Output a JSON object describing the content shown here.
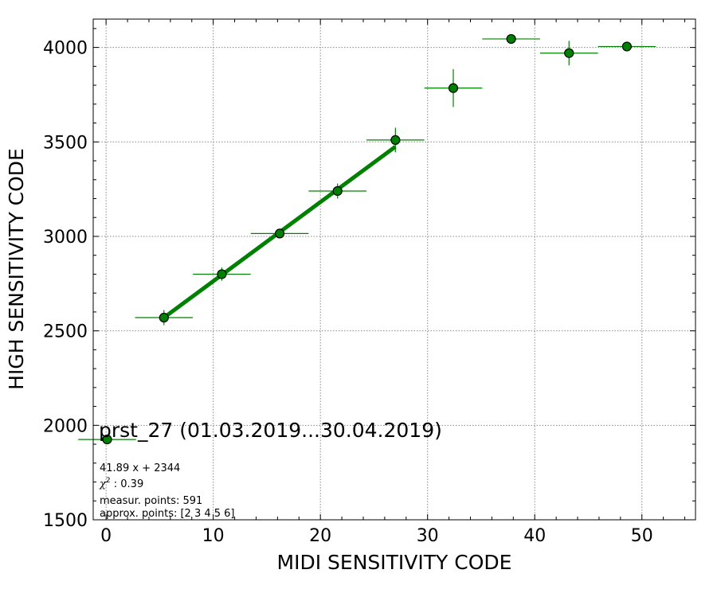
{
  "chart_data": {
    "type": "scatter",
    "title": "prst_27 (01.03.2019...30.04.2019)",
    "xlabel": "MIDI SENSITIVITY CODE",
    "ylabel": "HIGH SENSITIVITY CODE",
    "xlim": [
      -1.2,
      55
    ],
    "ylim": [
      1500,
      4150
    ],
    "x_ticks": [
      0,
      10,
      20,
      30,
      40,
      50
    ],
    "y_ticks": [
      1500,
      2000,
      2500,
      3000,
      3500,
      4000
    ],
    "grid": true,
    "points": [
      {
        "x": 0.1,
        "y": 1925,
        "xerr": 2.7,
        "yerr": 0
      },
      {
        "x": 5.4,
        "y": 2570,
        "xerr": 2.7,
        "yerr": 40
      },
      {
        "x": 10.8,
        "y": 2800,
        "xerr": 2.7,
        "yerr": 35
      },
      {
        "x": 16.2,
        "y": 3015,
        "xerr": 2.7,
        "yerr": 25
      },
      {
        "x": 21.6,
        "y": 3240,
        "xerr": 2.7,
        "yerr": 40
      },
      {
        "x": 27.0,
        "y": 3510,
        "xerr": 2.7,
        "yerr": 65
      },
      {
        "x": 32.4,
        "y": 3785,
        "xerr": 2.7,
        "yerr": 100
      },
      {
        "x": 37.8,
        "y": 4045,
        "xerr": 2.7,
        "yerr": 0
      },
      {
        "x": 43.2,
        "y": 3970,
        "xerr": 2.7,
        "yerr": 65
      },
      {
        "x": 48.6,
        "y": 4005,
        "xerr": 2.7,
        "yerr": 0
      }
    ],
    "fit_line": {
      "slope": 41.89,
      "intercept": 2344,
      "x_range": [
        5.4,
        27.0
      ]
    },
    "annotations": [
      "41.89 x + 2344",
      "measur. points: 591",
      "approx. points: [2 3 4 5 6]"
    ],
    "chi_value": "0.39",
    "colors": {
      "series": "#008000",
      "marker_edge": "#000000",
      "grid": "#888888"
    }
  }
}
